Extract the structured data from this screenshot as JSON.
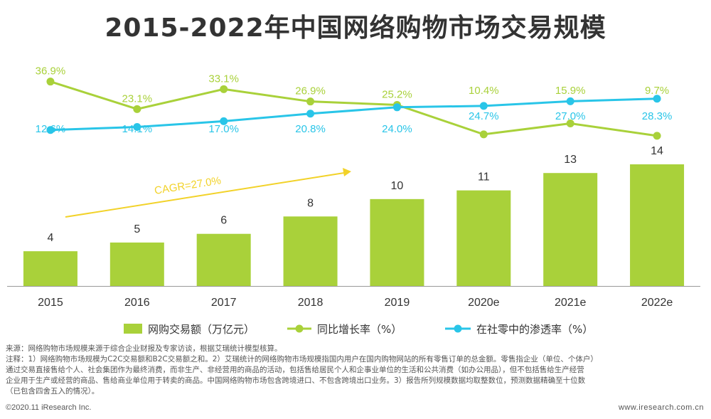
{
  "chart_data": {
    "type": "bar",
    "title": "2015-2022年中国网络购物市场交易规模",
    "categories": [
      "2015",
      "2016",
      "2017",
      "2018",
      "2019",
      "2020e",
      "2021e",
      "2022e"
    ],
    "series": [
      {
        "name": "网购交易额（万亿元）",
        "type": "bar",
        "color": "#a9d13a",
        "values": [
          4,
          5,
          6,
          8,
          10,
          11,
          13,
          14
        ]
      },
      {
        "name": "同比增长率（%）",
        "type": "line",
        "color": "#a9d13a",
        "values": [
          36.9,
          23.1,
          33.1,
          26.9,
          25.2,
          10.4,
          15.9,
          9.7
        ]
      },
      {
        "name": "在社零中的渗透率（%）",
        "type": "line",
        "color": "#29c5e8",
        "values": [
          12.6,
          14.1,
          17.0,
          20.8,
          24.0,
          24.7,
          27.0,
          28.3
        ]
      }
    ],
    "bar_labels": [
      "4",
      "5",
      "6",
      "8",
      "10",
      "11",
      "13",
      "14"
    ],
    "growth_labels": [
      "36.9%",
      "23.1%",
      "33.1%",
      "26.9%",
      "25.2%",
      "10.4%",
      "15.9%",
      "9.7%"
    ],
    "penetration_labels": [
      "12.6%",
      "14.1%",
      "17.0%",
      "20.8%",
      "24.0%",
      "24.7%",
      "27.0%",
      "28.3%"
    ],
    "bar_ylim": [
      0,
      14
    ],
    "line_ylim": [
      10,
      40
    ],
    "annotation": "CAGR=27.0%",
    "legend_position": "bottom"
  },
  "colors": {
    "bar": "#a9d13a",
    "growth": "#a9d13a",
    "penetration": "#29c5e8",
    "arrow": "#f2d229",
    "text": "#333333"
  },
  "notes": {
    "line1": "来源：网络购物市场规模来源于综合企业财报及专家访谈，根据艾瑞统计模型核算。",
    "line2": "注释：1）网络购物市场规模为C2C交易额和B2C交易额之和。2）艾瑞统计的网络购物市场规模指国内用户在国内购物网站的所有零售订单的总金额。零售指企业（单位、个体户）",
    "line3": "通过交易直接售给个人、社会集团作为最终消费，而非生产、非经营用的商品的活动，包括售给居民个人和企事业单位的生活和公共消费（如办公用品），但不包括售给生产经营",
    "line4": "企业用于生产或经营的商品、售给商业单位用于转卖的商品。中国网络购物市场包含跨境进口、不包含跨境出口业务。3）报告所列规模数据均取整数位，预测数据精确至十位数",
    "line5": "（已包含四舍五入的情况）。"
  },
  "footer": {
    "copyright": "©2020.11 iResearch Inc.",
    "website": "www.iresearch.com.cn"
  }
}
